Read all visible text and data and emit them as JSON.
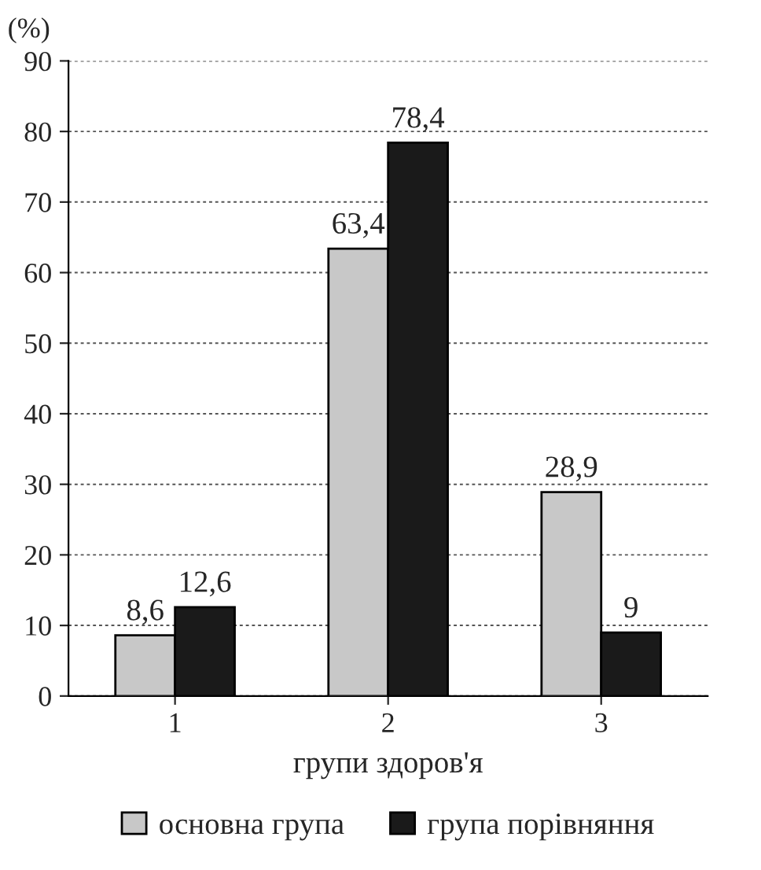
{
  "chart_data": {
    "type": "bar",
    "ylabel": "(%)",
    "xlabel": "групи здоров'я",
    "categories": [
      "1",
      "2",
      "3"
    ],
    "series": [
      {
        "name": "основна група",
        "color": "#c8c8c8",
        "values": [
          8.6,
          63.4,
          28.9
        ],
        "value_labels": [
          "8,6",
          "63,4",
          "28,9"
        ]
      },
      {
        "name": "група порівняння",
        "color": "#1a1a1a",
        "values": [
          12.6,
          78.4,
          9
        ],
        "value_labels": [
          "12,6",
          "78,4",
          "9"
        ]
      }
    ],
    "ylim": [
      0,
      90
    ],
    "yticks": [
      0,
      10,
      20,
      30,
      40,
      50,
      60,
      70,
      80,
      90
    ],
    "grid": "y",
    "legend": "bottom"
  }
}
